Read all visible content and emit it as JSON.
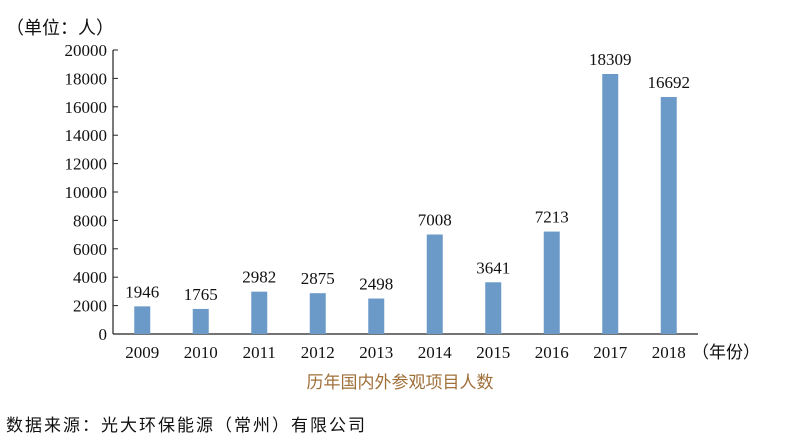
{
  "chart_data": {
    "type": "bar",
    "unit_label": "（单位：人）",
    "x_unit_label": "（年份）",
    "categories": [
      "2009",
      "2010",
      "2011",
      "2012",
      "2013",
      "2014",
      "2015",
      "2016",
      "2017",
      "2018"
    ],
    "values": [
      1946,
      1765,
      2982,
      2875,
      2498,
      7008,
      3641,
      7213,
      18309,
      16692
    ],
    "ylim": [
      0,
      20000
    ],
    "yticks": [
      "0",
      "2000",
      "4000",
      "6000",
      "8000",
      "10000",
      "12000",
      "14000",
      "16000",
      "18000",
      "20000"
    ],
    "bar_color": "#6b9ac8",
    "grid": false
  },
  "caption": "历年国内外参观项目人数",
  "source": "数据来源：光大环保能源（常州）有限公司"
}
